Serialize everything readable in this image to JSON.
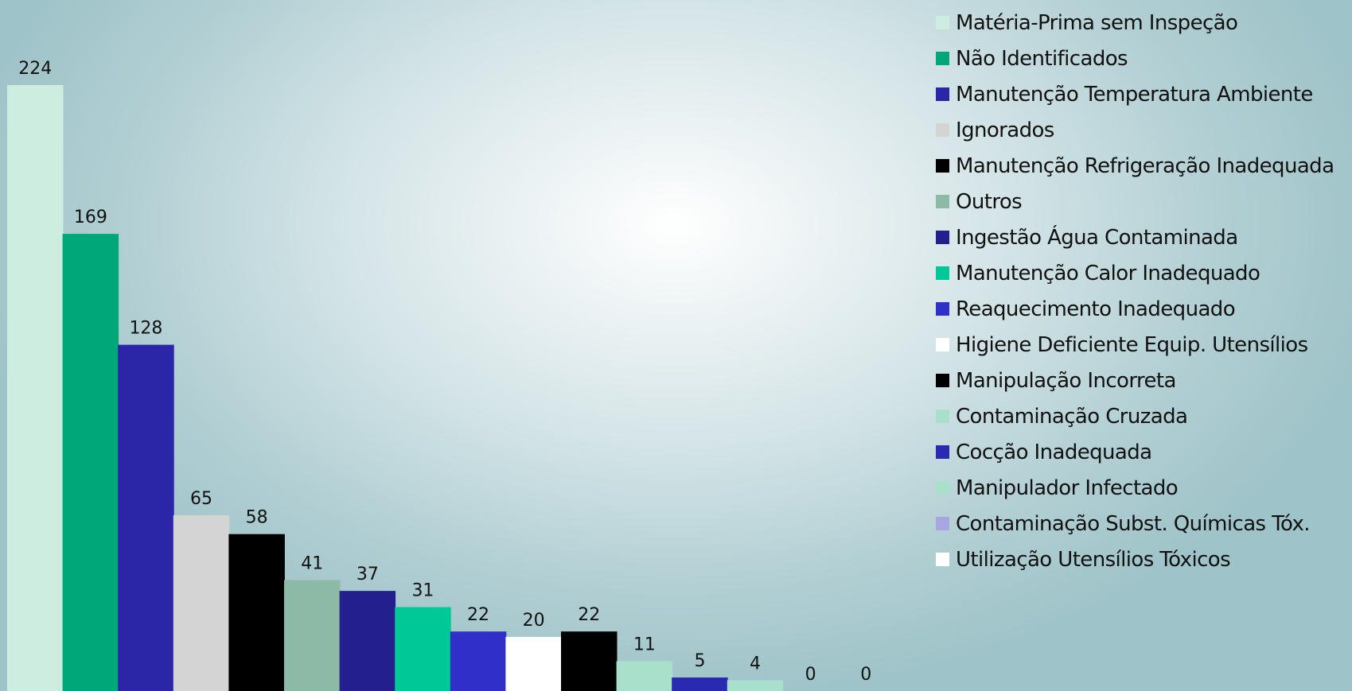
{
  "chart_data": {
    "type": "bar",
    "title": "",
    "xlabel": "",
    "ylabel": "",
    "ylim": [
      0,
      224
    ],
    "grid": false,
    "legend_position": "right",
    "categories": [
      "Matéria-Prima sem Inspeção",
      "Não Identificados",
      "Manutenção Temperatura  Ambiente",
      "Ignorados",
      "Manutenção Refrigeração Inadequada",
      "Outros",
      "Ingestão Água Contaminada",
      "Manutenção Calor   Inadequado",
      "Reaquecimento Inadequado",
      "Higiene Deficiente Equip. Utensílios",
      "Manipulação Incorreta",
      "Contaminação Cruzada",
      "Cocção Inadequada",
      "Manipulador Infectado",
      "Contaminação Subst. Químicas Tóx.",
      "Utilização Utensílios Tóxicos"
    ],
    "values": [
      224,
      169,
      128,
      65,
      58,
      41,
      37,
      31,
      22,
      20,
      22,
      11,
      5,
      4,
      0,
      0
    ],
    "colors": [
      "#ccede0",
      "#00a879",
      "#2b25a8",
      "#d4d4d4",
      "#000000",
      "#8dbaa6",
      "#231f8f",
      "#00c896",
      "#3030c8",
      "#ffffff",
      "#000000",
      "#a8e0cc",
      "#2a2ab0",
      "#a8e0cc",
      "#a8a6e0",
      "#ffffff"
    ]
  }
}
